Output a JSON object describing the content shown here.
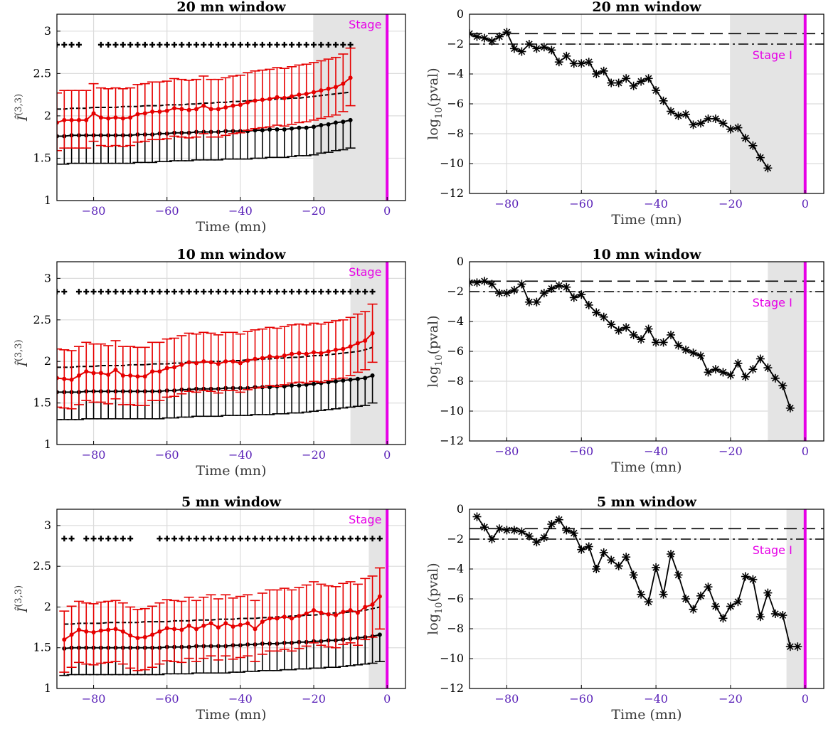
{
  "chart_data": [
    {
      "type": "line",
      "panel": "index",
      "title": "20 mn window",
      "xlabel": "Time (mn)",
      "ylabel_main": "Î",
      "ylabel_sup": "(3,3)",
      "xlim": [
        -90,
        5
      ],
      "ylim": [
        1,
        3.2
      ],
      "xticks": [
        -80,
        -60,
        -40,
        -20,
        0
      ],
      "yticks": [
        1,
        1.5,
        2,
        2.5,
        3
      ],
      "shade": [
        -20,
        0
      ],
      "stage_line": 0,
      "stage_label": "Stage I",
      "x": [
        -90,
        -88,
        -86,
        -84,
        -82,
        -80,
        -78,
        -76,
        -74,
        -72,
        -70,
        -68,
        -66,
        -64,
        -62,
        -60,
        -58,
        -56,
        -54,
        -52,
        -50,
        -48,
        -46,
        -44,
        -42,
        -40,
        -38,
        -36,
        -34,
        -32,
        -30,
        -28,
        -26,
        -24,
        -22,
        -20,
        -18,
        -16,
        -14,
        -12,
        -10
      ],
      "series": [
        {
          "color": "#000000",
          "values": [
            1.76,
            1.76,
            1.77,
            1.77,
            1.77,
            1.77,
            1.77,
            1.77,
            1.77,
            1.77,
            1.77,
            1.78,
            1.78,
            1.78,
            1.79,
            1.79,
            1.8,
            1.8,
            1.8,
            1.81,
            1.81,
            1.81,
            1.81,
            1.82,
            1.82,
            1.82,
            1.82,
            1.83,
            1.83,
            1.84,
            1.84,
            1.84,
            1.85,
            1.86,
            1.86,
            1.87,
            1.89,
            1.9,
            1.92,
            1.93,
            1.95
          ],
          "lower_err": 0.33
        },
        {
          "color": "#e60000",
          "values": [
            1.92,
            1.95,
            1.95,
            1.95,
            1.95,
            2.03,
            1.98,
            1.97,
            1.98,
            1.97,
            1.98,
            2.02,
            2.03,
            2.05,
            2.05,
            2.06,
            2.09,
            2.08,
            2.07,
            2.08,
            2.12,
            2.08,
            2.08,
            2.1,
            2.12,
            2.13,
            2.16,
            2.18,
            2.19,
            2.2,
            2.22,
            2.21,
            2.23,
            2.25,
            2.26,
            2.28,
            2.3,
            2.32,
            2.34,
            2.38,
            2.45
          ],
          "upper_err": 0.35,
          "lower_err": 0.33
        }
      ],
      "reference_line": {
        "values": [
          2.08,
          2.08,
          2.09,
          2.09,
          2.09,
          2.1,
          2.1,
          2.1,
          2.1,
          2.11,
          2.11,
          2.11,
          2.12,
          2.12,
          2.12,
          2.13,
          2.13,
          2.13,
          2.14,
          2.14,
          2.15,
          2.15,
          2.16,
          2.16,
          2.17,
          2.17,
          2.18,
          2.18,
          2.19,
          2.19,
          2.2,
          2.2,
          2.21,
          2.21,
          2.22,
          2.23,
          2.24,
          2.25,
          2.26,
          2.27,
          2.28
        ]
      },
      "markers": {
        "y": 2.84,
        "start": -90,
        "end": -10,
        "step": 2,
        "gaps": [
          -82,
          -80
        ]
      }
    },
    {
      "type": "line",
      "panel": "pval",
      "title": "20 mn window",
      "xlabel": "Time (mn)",
      "ylabel_main": "log",
      "ylabel_sub": "10",
      "ylabel_rest": "(pval)",
      "xlim": [
        -90,
        5
      ],
      "ylim": [
        -12,
        0
      ],
      "xticks": [
        -80,
        -60,
        -40,
        -20,
        0
      ],
      "yticks": [
        0,
        -2,
        -4,
        -6,
        -8,
        -10,
        -12
      ],
      "shade": [
        -20,
        0
      ],
      "stage_line": 0,
      "stage_label": "Stage I",
      "hlines": [
        -1.3,
        -2
      ],
      "x": [
        -90,
        -88,
        -86,
        -84,
        -82,
        -80,
        -78,
        -76,
        -74,
        -72,
        -70,
        -68,
        -66,
        -64,
        -62,
        -60,
        -58,
        -56,
        -54,
        -52,
        -50,
        -48,
        -46,
        -44,
        -42,
        -40,
        -38,
        -36,
        -34,
        -32,
        -30,
        -28,
        -26,
        -24,
        -22,
        -20,
        -18,
        -16,
        -14,
        -12,
        -10
      ],
      "values": [
        -1.3,
        -1.5,
        -1.6,
        -1.8,
        -1.5,
        -1.2,
        -2.3,
        -2.5,
        -2.0,
        -2.3,
        -2.2,
        -2.4,
        -3.2,
        -2.8,
        -3.3,
        -3.3,
        -3.2,
        -4.0,
        -3.8,
        -4.6,
        -4.6,
        -4.3,
        -4.8,
        -4.5,
        -4.3,
        -5.1,
        -5.8,
        -6.5,
        -6.8,
        -6.7,
        -7.4,
        -7.3,
        -7.0,
        -7.0,
        -7.3,
        -7.7,
        -7.6,
        -8.3,
        -8.8,
        -9.6,
        -10.3
      ]
    },
    {
      "type": "line",
      "panel": "index",
      "title": "10 mn window",
      "xlabel": "Time (mn)",
      "ylabel_main": "Î",
      "ylabel_sup": "(3,3)",
      "xlim": [
        -90,
        5
      ],
      "ylim": [
        1,
        3.2
      ],
      "xticks": [
        -80,
        -60,
        -40,
        -20,
        0
      ],
      "yticks": [
        1,
        1.5,
        2,
        2.5,
        3
      ],
      "shade": [
        -10,
        0
      ],
      "stage_line": 0,
      "stage_label": "Stage I",
      "x": [
        -90,
        -88,
        -86,
        -84,
        -82,
        -80,
        -78,
        -76,
        -74,
        -72,
        -70,
        -68,
        -66,
        -64,
        -62,
        -60,
        -58,
        -56,
        -54,
        -52,
        -50,
        -48,
        -46,
        -44,
        -42,
        -40,
        -38,
        -36,
        -34,
        -32,
        -30,
        -28,
        -26,
        -24,
        -22,
        -20,
        -18,
        -16,
        -14,
        -12,
        -10,
        -8,
        -6,
        -4
      ],
      "series": [
        {
          "color": "#000000",
          "values": [
            1.63,
            1.63,
            1.63,
            1.63,
            1.64,
            1.64,
            1.64,
            1.64,
            1.64,
            1.64,
            1.64,
            1.64,
            1.64,
            1.64,
            1.64,
            1.65,
            1.65,
            1.66,
            1.66,
            1.67,
            1.67,
            1.67,
            1.67,
            1.68,
            1.68,
            1.68,
            1.68,
            1.69,
            1.69,
            1.69,
            1.7,
            1.7,
            1.71,
            1.71,
            1.72,
            1.73,
            1.74,
            1.75,
            1.76,
            1.77,
            1.78,
            1.79,
            1.8,
            1.83
          ],
          "lower_err": 0.33
        },
        {
          "color": "#e60000",
          "values": [
            1.8,
            1.79,
            1.78,
            1.83,
            1.88,
            1.86,
            1.86,
            1.84,
            1.9,
            1.83,
            1.83,
            1.82,
            1.82,
            1.88,
            1.88,
            1.92,
            1.93,
            1.96,
            1.99,
            1.98,
            2.0,
            1.99,
            1.97,
            2.0,
            2.0,
            1.98,
            2.01,
            2.03,
            2.04,
            2.06,
            2.05,
            2.07,
            2.09,
            2.1,
            2.09,
            2.11,
            2.1,
            2.12,
            2.14,
            2.15,
            2.18,
            2.22,
            2.25,
            2.34
          ],
          "upper_err": 0.35,
          "lower_err": 0.35
        }
      ],
      "reference_line": {
        "values": [
          1.93,
          1.93,
          1.93,
          1.94,
          1.94,
          1.94,
          1.95,
          1.95,
          1.95,
          1.95,
          1.96,
          1.96,
          1.96,
          1.97,
          1.97,
          1.97,
          1.98,
          1.98,
          1.99,
          1.99,
          1.99,
          2.0,
          2.0,
          2.0,
          2.01,
          2.01,
          2.02,
          2.02,
          2.03,
          2.03,
          2.04,
          2.04,
          2.05,
          2.05,
          2.06,
          2.07,
          2.07,
          2.08,
          2.09,
          2.1,
          2.11,
          2.12,
          2.14,
          2.17
        ]
      },
      "markers": {
        "y": 2.84,
        "start": -90,
        "end": -4,
        "step": 2,
        "gaps": [
          -86
        ]
      }
    },
    {
      "type": "line",
      "panel": "pval",
      "title": "10 mn window",
      "xlabel": "Time (mn)",
      "ylabel_main": "log",
      "ylabel_sub": "10",
      "ylabel_rest": "(pval)",
      "xlim": [
        -90,
        5
      ],
      "ylim": [
        -12,
        0
      ],
      "xticks": [
        -80,
        -60,
        -40,
        -20,
        0
      ],
      "yticks": [
        0,
        -2,
        -4,
        -6,
        -8,
        -10,
        -12
      ],
      "shade": [
        -10,
        0
      ],
      "stage_line": 0,
      "stage_label": "Stage I",
      "hlines": [
        -1.3,
        -2
      ],
      "x": [
        -90,
        -88,
        -86,
        -84,
        -82,
        -80,
        -78,
        -76,
        -74,
        -72,
        -70,
        -68,
        -66,
        -64,
        -62,
        -60,
        -58,
        -56,
        -54,
        -52,
        -50,
        -48,
        -46,
        -44,
        -42,
        -40,
        -38,
        -36,
        -34,
        -32,
        -30,
        -28,
        -26,
        -24,
        -22,
        -20,
        -18,
        -16,
        -14,
        -12,
        -10,
        -8,
        -6,
        -4
      ],
      "values": [
        -1.4,
        -1.4,
        -1.3,
        -1.5,
        -2.1,
        -2.1,
        -1.9,
        -1.5,
        -2.7,
        -2.7,
        -2.1,
        -1.8,
        -1.6,
        -1.7,
        -2.4,
        -2.2,
        -2.9,
        -3.4,
        -3.7,
        -4.2,
        -4.6,
        -4.4,
        -4.9,
        -5.2,
        -4.5,
        -5.4,
        -5.4,
        -4.9,
        -5.6,
        -5.9,
        -6.1,
        -6.3,
        -7.4,
        -7.2,
        -7.4,
        -7.6,
        -6.8,
        -7.7,
        -7.2,
        -6.5,
        -7.1,
        -7.8,
        -8.3,
        -9.8
      ]
    },
    {
      "type": "line",
      "panel": "index",
      "title": "5 mn window",
      "xlabel": "Time (mn)",
      "ylabel_main": "Î",
      "ylabel_sup": "(3,3)",
      "xlim": [
        -90,
        5
      ],
      "ylim": [
        1,
        3.2
      ],
      "xticks": [
        -80,
        -60,
        -40,
        -20,
        0
      ],
      "yticks": [
        1,
        1.5,
        2,
        2.5,
        3
      ],
      "shade": [
        -5,
        0
      ],
      "stage_line": 0,
      "stage_label": "Stage I",
      "x": [
        -88,
        -86,
        -84,
        -82,
        -80,
        -78,
        -76,
        -74,
        -72,
        -70,
        -68,
        -66,
        -64,
        -62,
        -60,
        -58,
        -56,
        -54,
        -52,
        -50,
        -48,
        -46,
        -44,
        -42,
        -40,
        -38,
        -36,
        -34,
        -32,
        -30,
        -28,
        -26,
        -24,
        -22,
        -20,
        -18,
        -16,
        -14,
        -12,
        -10,
        -8,
        -6,
        -4,
        -2
      ],
      "series": [
        {
          "color": "#000000",
          "values": [
            1.49,
            1.5,
            1.5,
            1.5,
            1.5,
            1.5,
            1.5,
            1.5,
            1.5,
            1.5,
            1.5,
            1.5,
            1.5,
            1.5,
            1.51,
            1.51,
            1.51,
            1.51,
            1.52,
            1.52,
            1.52,
            1.52,
            1.52,
            1.53,
            1.53,
            1.54,
            1.54,
            1.55,
            1.55,
            1.55,
            1.56,
            1.56,
            1.57,
            1.57,
            1.58,
            1.58,
            1.59,
            1.59,
            1.6,
            1.61,
            1.62,
            1.63,
            1.64,
            1.66
          ],
          "lower_err": 0.33
        },
        {
          "color": "#e60000",
          "values": [
            1.6,
            1.66,
            1.72,
            1.7,
            1.69,
            1.71,
            1.72,
            1.73,
            1.7,
            1.65,
            1.62,
            1.63,
            1.66,
            1.7,
            1.74,
            1.73,
            1.72,
            1.77,
            1.73,
            1.77,
            1.8,
            1.75,
            1.8,
            1.76,
            1.78,
            1.8,
            1.73,
            1.82,
            1.86,
            1.86,
            1.88,
            1.86,
            1.89,
            1.92,
            1.96,
            1.93,
            1.91,
            1.9,
            1.94,
            1.96,
            1.93,
            2.0,
            2.03,
            2.13
          ],
          "upper_err": 0.35,
          "lower_err": 0.4
        }
      ],
      "reference_line": {
        "values": [
          1.79,
          1.79,
          1.8,
          1.8,
          1.8,
          1.8,
          1.81,
          1.81,
          1.81,
          1.81,
          1.81,
          1.82,
          1.82,
          1.82,
          1.82,
          1.83,
          1.83,
          1.83,
          1.84,
          1.84,
          1.84,
          1.85,
          1.85,
          1.85,
          1.86,
          1.86,
          1.86,
          1.87,
          1.87,
          1.88,
          1.88,
          1.89,
          1.89,
          1.9,
          1.9,
          1.91,
          1.92,
          1.93,
          1.93,
          1.94,
          1.95,
          1.96,
          1.98,
          2.0
        ]
      },
      "markers": {
        "y": 2.84,
        "start": -88,
        "end": -2,
        "step": 2,
        "gaps": [
          -84,
          -68,
          -66,
          -64
        ]
      }
    },
    {
      "type": "line",
      "panel": "pval",
      "title": "5 mn window",
      "xlabel": "Time (mn)",
      "ylabel_main": "log",
      "ylabel_sub": "10",
      "ylabel_rest": "(pval)",
      "xlim": [
        -90,
        5
      ],
      "ylim": [
        -12,
        0
      ],
      "xticks": [
        -80,
        -60,
        -40,
        -20,
        0
      ],
      "yticks": [
        0,
        -2,
        -4,
        -6,
        -8,
        -10,
        -12
      ],
      "shade": [
        -5,
        0
      ],
      "stage_line": 0,
      "stage_label": "Stage I",
      "hlines": [
        -1.3,
        -2
      ],
      "x": [
        -88,
        -86,
        -84,
        -82,
        -80,
        -78,
        -76,
        -74,
        -72,
        -70,
        -68,
        -66,
        -64,
        -62,
        -60,
        -58,
        -56,
        -54,
        -52,
        -50,
        -48,
        -46,
        -44,
        -42,
        -40,
        -38,
        -36,
        -34,
        -32,
        -30,
        -28,
        -26,
        -24,
        -22,
        -20,
        -18,
        -16,
        -14,
        -12,
        -10,
        -8,
        -6,
        -4,
        -2
      ],
      "values": [
        -0.5,
        -1.2,
        -2.0,
        -1.3,
        -1.4,
        -1.4,
        -1.5,
        -1.8,
        -2.2,
        -1.9,
        -1.0,
        -0.7,
        -1.4,
        -1.6,
        -2.7,
        -2.5,
        -4.0,
        -2.9,
        -3.4,
        -3.8,
        -3.2,
        -4.4,
        -5.7,
        -6.2,
        -3.9,
        -5.7,
        -3.0,
        -4.4,
        -6.0,
        -6.7,
        -5.8,
        -5.2,
        -6.5,
        -7.3,
        -6.5,
        -6.2,
        -4.5,
        -4.7,
        -7.2,
        -5.6,
        -7.0,
        -7.1,
        -9.2,
        -9.2
      ]
    }
  ]
}
